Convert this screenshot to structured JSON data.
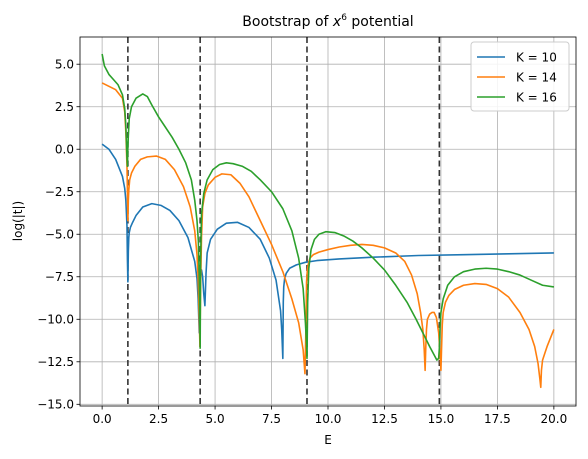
{
  "chart_data": {
    "type": "line",
    "title": "Bootstrap of x^6 potential",
    "title_base": "Bootstrap of ",
    "title_var": "x",
    "title_exp": "6",
    "title_rest": " potential",
    "xlabel": "E",
    "ylabel": "log(|t|)",
    "xlim": [
      -0.98,
      20.98
    ],
    "ylim": [
      -15.1,
      6.6
    ],
    "xticks": [
      0.0,
      2.5,
      5.0,
      7.5,
      10.0,
      12.5,
      15.0,
      17.5,
      20.0
    ],
    "xtick_labels": [
      "0.0",
      "2.5",
      "5.0",
      "7.5",
      "10.0",
      "12.5",
      "15.0",
      "17.5",
      "20.0"
    ],
    "yticks": [
      -15.0,
      -12.5,
      -10.0,
      -7.5,
      -5.0,
      -2.5,
      0.0,
      2.5,
      5.0
    ],
    "ytick_labels": [
      "−15.0",
      "−12.5",
      "−10.0",
      "−7.5",
      "−5.0",
      "−2.5",
      "0.0",
      "2.5",
      "5.0"
    ],
    "grid": true,
    "legend_position": "upper right",
    "vlines": [
      1.14,
      4.34,
      9.07,
      14.93
    ],
    "series": [
      {
        "name": "K = 10",
        "color": "#1f77b4",
        "x": [
          0.0,
          0.3,
          0.6,
          0.9,
          1.0,
          1.05,
          1.1,
          1.12,
          1.14,
          1.16,
          1.18,
          1.2,
          1.25,
          1.35,
          1.5,
          1.8,
          2.2,
          2.6,
          3.0,
          3.4,
          3.8,
          4.1,
          4.2,
          4.25,
          4.3,
          4.33,
          4.34,
          4.36,
          4.4,
          4.45,
          4.5,
          4.55,
          4.6,
          4.65,
          4.8,
          5.1,
          5.5,
          6.0,
          6.5,
          7.0,
          7.4,
          7.7,
          7.9,
          7.95,
          8.0,
          8.02,
          8.04,
          8.08,
          8.15,
          8.3,
          8.6,
          9.0,
          9.5,
          10.5,
          12.0,
          14.0,
          16.0,
          18.0,
          20.0
        ],
        "y": [
          0.3,
          0.0,
          -0.6,
          -1.6,
          -2.3,
          -3.0,
          -4.5,
          -6.5,
          -7.8,
          -6.0,
          -5.2,
          -4.9,
          -4.6,
          -4.3,
          -3.9,
          -3.4,
          -3.2,
          -3.3,
          -3.6,
          -4.2,
          -5.2,
          -6.6,
          -7.6,
          -8.8,
          -10.8,
          -9.5,
          -8.0,
          -7.3,
          -7.1,
          -7.5,
          -8.5,
          -9.2,
          -7.3,
          -6.1,
          -5.3,
          -4.7,
          -4.35,
          -4.3,
          -4.6,
          -5.3,
          -6.4,
          -7.7,
          -9.5,
          -10.6,
          -12.3,
          -9.0,
          -8.1,
          -7.6,
          -7.3,
          -7.0,
          -6.8,
          -6.65,
          -6.55,
          -6.45,
          -6.35,
          -6.25,
          -6.2,
          -6.15,
          -6.1
        ]
      },
      {
        "name": "K = 14",
        "color": "#ff7f0e",
        "x": [
          0.0,
          0.3,
          0.6,
          0.9,
          1.0,
          1.05,
          1.1,
          1.12,
          1.14,
          1.16,
          1.18,
          1.22,
          1.3,
          1.45,
          1.7,
          2.0,
          2.4,
          2.8,
          3.2,
          3.6,
          3.9,
          4.1,
          4.2,
          4.25,
          4.3,
          4.33,
          4.36,
          4.4,
          4.45,
          4.55,
          4.7,
          5.0,
          5.3,
          5.7,
          6.1,
          6.5,
          7.0,
          7.5,
          8.0,
          8.4,
          8.7,
          8.9,
          8.98,
          9.03,
          9.05,
          9.08,
          9.12,
          9.2,
          9.35,
          9.6,
          10.0,
          10.5,
          11.0,
          11.5,
          12.0,
          12.5,
          13.0,
          13.4,
          13.7,
          13.95,
          14.1,
          14.2,
          14.26,
          14.3,
          14.33,
          14.36,
          14.4,
          14.5,
          14.6,
          14.7,
          14.8,
          14.9,
          14.96,
          15.0,
          15.03,
          15.06,
          15.1,
          15.2,
          15.35,
          15.6,
          16.0,
          16.5,
          17.0,
          17.5,
          18.0,
          18.5,
          18.9,
          19.15,
          19.3,
          19.38,
          19.42,
          19.45,
          19.5,
          19.6,
          19.7,
          19.85,
          20.0
        ],
        "y": [
          3.9,
          3.7,
          3.5,
          3.0,
          2.2,
          1.0,
          -1.0,
          -2.5,
          -4.2,
          -3.0,
          -2.4,
          -1.8,
          -1.4,
          -1.0,
          -0.6,
          -0.45,
          -0.4,
          -0.6,
          -1.2,
          -2.2,
          -3.4,
          -4.8,
          -6.2,
          -7.6,
          -10.0,
          -11.6,
          -8.0,
          -5.2,
          -3.4,
          -2.6,
          -2.1,
          -1.65,
          -1.45,
          -1.5,
          -2.0,
          -2.8,
          -4.2,
          -5.6,
          -7.2,
          -8.8,
          -10.2,
          -11.8,
          -13.2,
          -10.0,
          -7.8,
          -7.2,
          -6.8,
          -6.4,
          -6.2,
          -6.05,
          -5.9,
          -5.75,
          -5.65,
          -5.6,
          -5.65,
          -5.8,
          -6.1,
          -6.6,
          -7.4,
          -8.5,
          -9.6,
          -10.6,
          -11.8,
          -13.0,
          -11.6,
          -10.6,
          -10.0,
          -9.7,
          -9.6,
          -9.6,
          -9.9,
          -10.8,
          -12.0,
          -13.0,
          -11.6,
          -10.3,
          -9.6,
          -9.0,
          -8.6,
          -8.25,
          -8.0,
          -7.9,
          -7.95,
          -8.2,
          -8.7,
          -9.6,
          -10.6,
          -11.6,
          -12.6,
          -13.5,
          -14.0,
          -13.0,
          -12.4,
          -12.0,
          -11.6,
          -11.1,
          -10.6
        ]
      },
      {
        "name": "K = 16",
        "color": "#2ca02c",
        "x": [
          0.0,
          0.1,
          0.3,
          0.5,
          0.7,
          0.9,
          1.0,
          1.05,
          1.1,
          1.12,
          1.14,
          1.16,
          1.2,
          1.3,
          1.5,
          1.8,
          2.0,
          2.2,
          2.5,
          2.8,
          3.1,
          3.4,
          3.7,
          3.95,
          4.1,
          4.2,
          4.26,
          4.3,
          4.32,
          4.34,
          4.36,
          4.4,
          4.5,
          4.65,
          4.9,
          5.2,
          5.5,
          5.8,
          6.2,
          6.6,
          7.0,
          7.5,
          8.0,
          8.4,
          8.7,
          8.9,
          9.0,
          9.05,
          9.07,
          9.1,
          9.15,
          9.25,
          9.4,
          9.6,
          9.9,
          10.3,
          10.7,
          11.1,
          11.5,
          12.0,
          12.5,
          13.0,
          13.5,
          13.9,
          14.2,
          14.5,
          14.7,
          14.82,
          14.9,
          14.93,
          14.96,
          15.0,
          15.1,
          15.3,
          15.6,
          16.0,
          16.5,
          17.0,
          17.5,
          18.0,
          18.5,
          19.0,
          19.5,
          20.0
        ],
        "y": [
          5.6,
          4.9,
          4.4,
          4.1,
          3.8,
          3.2,
          2.4,
          1.4,
          -0.5,
          -1.0,
          0.1,
          0.8,
          1.8,
          2.5,
          3.0,
          3.25,
          3.1,
          2.6,
          1.9,
          1.3,
          0.7,
          0.0,
          -0.8,
          -1.8,
          -3.0,
          -4.2,
          -5.4,
          -7.6,
          -10.0,
          -11.7,
          -6.5,
          -3.8,
          -2.6,
          -1.8,
          -1.2,
          -0.9,
          -0.8,
          -0.85,
          -1.0,
          -1.3,
          -1.8,
          -2.5,
          -3.5,
          -4.8,
          -6.4,
          -8.2,
          -10.2,
          -11.5,
          -12.3,
          -9.0,
          -7.0,
          -5.9,
          -5.3,
          -5.0,
          -4.85,
          -4.9,
          -5.1,
          -5.4,
          -5.8,
          -6.4,
          -7.1,
          -8.0,
          -9.0,
          -10.0,
          -10.8,
          -11.6,
          -12.1,
          -12.4,
          -12.3,
          -11.7,
          -10.5,
          -9.6,
          -8.8,
          -8.0,
          -7.5,
          -7.2,
          -7.05,
          -7.0,
          -7.05,
          -7.2,
          -7.4,
          -7.7,
          -8.0,
          -8.1
        ]
      }
    ]
  }
}
